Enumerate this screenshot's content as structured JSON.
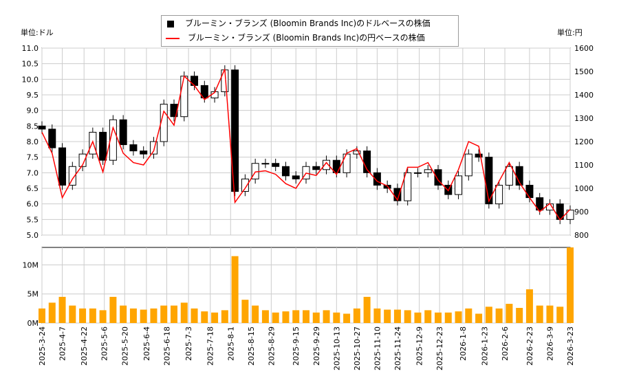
{
  "chart_data": {
    "type": "candlestick+line+bar",
    "left_unit_label": "単位:ドル",
    "right_unit_label": "単位:円",
    "legend": [
      "ブルーミン・ブランズ (Bloomin Brands Inc)のドルベースの株価",
      "ブルーミン・ブランズ (Bloomin Brands Inc)の円ベースの株価"
    ],
    "colors": {
      "usd": "#000000",
      "jpy": "#ff0000",
      "volume": "#ffa500"
    },
    "left_ylim": [
      5.0,
      11.0
    ],
    "left_ticks": [
      "5.0",
      "5.5",
      "6.0",
      "6.5",
      "7.0",
      "7.5",
      "8.0",
      "8.5",
      "9.0",
      "9.5",
      "10.0",
      "10.5",
      "11.0"
    ],
    "right_ylim": [
      800,
      1600
    ],
    "right_ticks": [
      "800",
      "900",
      "1000",
      "1100",
      "1200",
      "1300",
      "1400",
      "1500",
      "1600"
    ],
    "volume_ticks": [
      "0M",
      "5M",
      "10M"
    ],
    "volume_ylim": [
      0,
      13
    ],
    "x_ticks": [
      "2025-3-24",
      "2025-4-7",
      "2025-4-22",
      "2025-5-6",
      "2025-5-20",
      "2025-6-4",
      "2025-6-18",
      "2025-7-3",
      "2025-7-18",
      "2025-8-1",
      "2025-8-15",
      "2025-8-29",
      "2025-9-15",
      "2025-9-29",
      "2025-10-13",
      "2025-10-27",
      "2025-11-10",
      "2025-11-24",
      "2025-12-9",
      "2025-12-23",
      "2026-1-8",
      "2026-1-23",
      "2026-2-6",
      "2026-2-23",
      "2026-3-9",
      "2026-3-23"
    ],
    "grid": true,
    "dates": [
      "2025-03-24",
      "2025-03-31",
      "2025-04-07",
      "2025-04-14",
      "2025-04-21",
      "2025-04-28",
      "2025-05-05",
      "2025-05-12",
      "2025-05-19",
      "2025-05-26",
      "2025-06-02",
      "2025-06-09",
      "2025-06-16",
      "2025-06-23",
      "2025-06-30",
      "2025-07-07",
      "2025-07-14",
      "2025-07-21",
      "2025-07-28",
      "2025-08-04",
      "2025-08-11",
      "2025-08-18",
      "2025-08-25",
      "2025-09-01",
      "2025-09-08",
      "2025-09-15",
      "2025-09-22",
      "2025-09-29",
      "2025-10-06",
      "2025-10-13",
      "2025-10-20",
      "2025-10-27",
      "2025-11-03",
      "2025-11-10",
      "2025-11-17",
      "2025-11-24",
      "2025-12-01",
      "2025-12-08",
      "2025-12-15",
      "2025-12-22",
      "2025-12-29",
      "2026-01-05",
      "2026-01-12",
      "2026-01-19",
      "2026-01-26",
      "2026-02-02",
      "2026-02-09",
      "2026-02-16",
      "2026-02-23",
      "2026-03-02",
      "2026-03-09",
      "2026-03-16",
      "2026-03-23"
    ],
    "close_usd": [
      8.4,
      7.8,
      6.6,
      7.2,
      7.6,
      8.3,
      7.4,
      8.7,
      7.9,
      7.7,
      7.6,
      8.0,
      9.2,
      8.8,
      10.1,
      9.8,
      9.4,
      9.6,
      10.3,
      6.4,
      6.8,
      7.3,
      7.3,
      7.2,
      6.9,
      6.8,
      7.2,
      7.1,
      7.4,
      7.0,
      7.6,
      7.7,
      7.0,
      6.6,
      6.5,
      6.1,
      7.0,
      7.0,
      7.1,
      6.6,
      6.3,
      6.9,
      7.6,
      7.5,
      6.0,
      6.6,
      7.2,
      6.6,
      6.2,
      5.8,
      6.0,
      5.5,
      5.8
    ],
    "close_jpy": [
      1240,
      1150,
      960,
      1040,
      1100,
      1200,
      1070,
      1260,
      1150,
      1110,
      1100,
      1160,
      1330,
      1270,
      1480,
      1440,
      1380,
      1410,
      1510,
      940,
      1000,
      1070,
      1075,
      1060,
      1020,
      1000,
      1065,
      1055,
      1110,
      1060,
      1150,
      1170,
      1080,
      1030,
      1010,
      950,
      1090,
      1090,
      1110,
      1035,
      990,
      1080,
      1200,
      1180,
      945,
      1030,
      1110,
      1025,
      960,
      900,
      935,
      865,
      910
    ],
    "volume_millions": [
      2.5,
      3.5,
      4.5,
      3,
      2.5,
      2.5,
      2.2,
      4.5,
      3,
      2.5,
      2.3,
      2.5,
      3,
      3,
      3.5,
      2.5,
      2,
      1.8,
      2.2,
      11.5,
      4,
      3,
      2.2,
      1.8,
      2,
      2.2,
      2.2,
      1.8,
      2.2,
      1.8,
      1.6,
      2.5,
      4.5,
      2.5,
      2.3,
      2.3,
      2.2,
      1.8,
      2.2,
      1.8,
      1.8,
      2,
      2.5,
      1.6,
      2.8,
      2.5,
      3.3,
      2.6,
      5.8,
      3,
      3,
      2.8,
      13
    ]
  }
}
